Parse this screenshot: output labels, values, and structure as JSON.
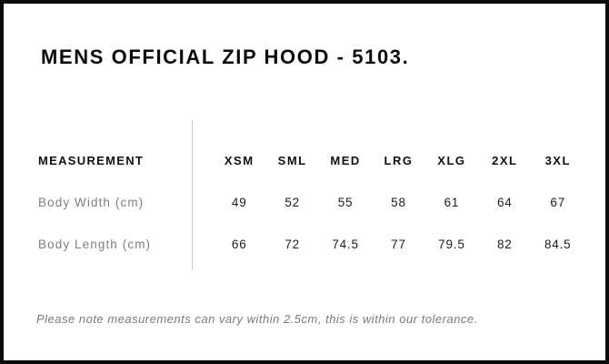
{
  "page": {
    "title": "MENS OFFICIAL ZIP HOOD - 5103.",
    "footnote": "Please note measurements can vary within 2.5cm, this is within our tolerance."
  },
  "table": {
    "measurement_header": "MEASUREMENT",
    "size_headers": [
      "XSM",
      "SML",
      "MED",
      "LRG",
      "XLG",
      "2XL",
      "3XL"
    ],
    "rows": [
      {
        "label": "Body Width (cm)",
        "values": [
          "49",
          "52",
          "55",
          "58",
          "61",
          "64",
          "67"
        ]
      },
      {
        "label": "Body Length (cm)",
        "values": [
          "66",
          "72",
          "74.5",
          "77",
          "79.5",
          "82",
          "84.5"
        ]
      }
    ]
  },
  "colors": {
    "border": "#0a0a0a",
    "title": "#0a0a0a",
    "header_text": "#111111",
    "label_text": "#7e7e7e",
    "value_text": "#1c1c1c",
    "divider": "#c6c6c6",
    "footnote_text": "#7a7a7a",
    "bg": "#ffffff"
  }
}
